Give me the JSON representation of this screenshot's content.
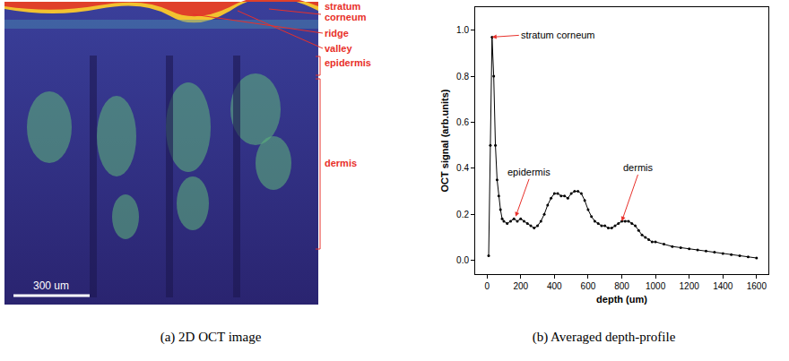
{
  "image": {
    "title": "(a) 2D OCT image",
    "labels": [
      "stratum corneum",
      "ridge",
      "valley",
      "epidermis",
      "dermis"
    ],
    "scale_bar": "300 um"
  },
  "chart_data": {
    "type": "line",
    "title": "(b) Averaged depth-profile",
    "x_label": "depth (um)",
    "y_label": "OCT signal (arb.units)",
    "x": [
      10,
      20,
      30,
      40,
      50,
      60,
      70,
      80,
      90,
      100,
      120,
      140,
      160,
      180,
      200,
      220,
      240,
      260,
      280,
      300,
      320,
      340,
      360,
      380,
      400,
      420,
      440,
      460,
      480,
      500,
      520,
      540,
      560,
      580,
      600,
      620,
      640,
      660,
      680,
      700,
      720,
      740,
      760,
      780,
      800,
      820,
      840,
      860,
      880,
      900,
      920,
      940,
      960,
      980,
      1000,
      1050,
      1100,
      1150,
      1200,
      1250,
      1300,
      1350,
      1400,
      1450,
      1500,
      1550,
      1600
    ],
    "values": [
      0.02,
      0.5,
      0.97,
      0.8,
      0.5,
      0.35,
      0.28,
      0.22,
      0.18,
      0.17,
      0.16,
      0.17,
      0.18,
      0.17,
      0.18,
      0.17,
      0.16,
      0.15,
      0.14,
      0.15,
      0.17,
      0.2,
      0.24,
      0.27,
      0.29,
      0.29,
      0.28,
      0.28,
      0.27,
      0.29,
      0.3,
      0.3,
      0.29,
      0.26,
      0.22,
      0.19,
      0.17,
      0.16,
      0.15,
      0.15,
      0.14,
      0.14,
      0.15,
      0.16,
      0.17,
      0.17,
      0.17,
      0.16,
      0.15,
      0.13,
      0.11,
      0.1,
      0.09,
      0.08,
      0.08,
      0.07,
      0.06,
      0.055,
      0.05,
      0.045,
      0.04,
      0.035,
      0.03,
      0.025,
      0.02,
      0.015,
      0.01
    ],
    "color": "#000000",
    "marker": "circle",
    "line_style": "solid",
    "xlim": [
      -70,
      1670
    ],
    "ylim": [
      -0.06,
      1.1
    ],
    "xticks": [
      0,
      200,
      400,
      600,
      800,
      1000,
      1200,
      1400,
      1600
    ],
    "yticks": [
      {
        "value": 0,
        "label": "0.0"
      },
      0.2,
      0.4,
      0.6,
      0.8,
      {
        "value": 1,
        "label": "1.0"
      }
    ],
    "grid": false,
    "annotations": [
      {
        "text": "stratum corneum",
        "x": 30,
        "y": 0.97
      },
      {
        "text": "epidermis",
        "x": 170,
        "y": 0.19
      },
      {
        "text": "dermis",
        "x": 800,
        "y": 0.17
      }
    ]
  }
}
